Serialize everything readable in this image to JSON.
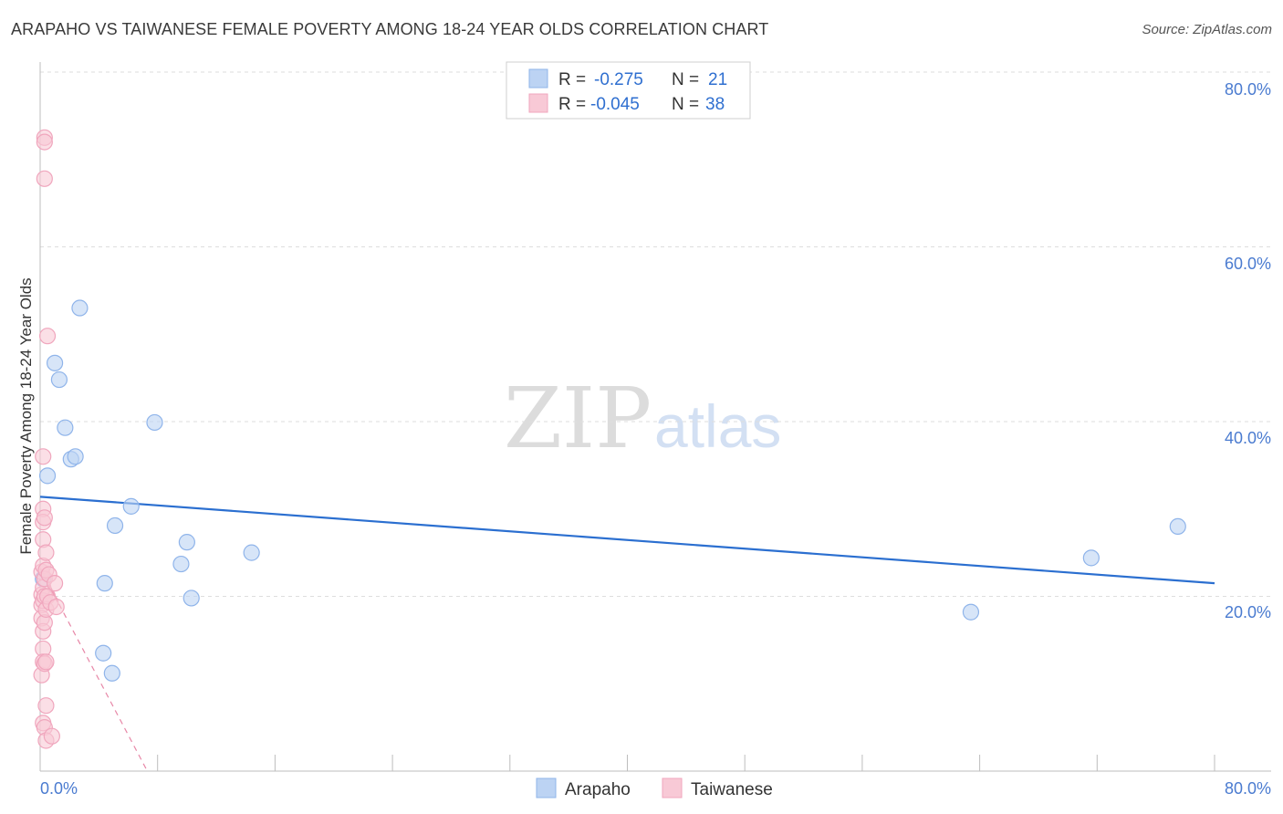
{
  "title": "ARAPAHO VS TAIWANESE FEMALE POVERTY AMONG 18-24 YEAR OLDS CORRELATION CHART",
  "source": "Source: ZipAtlas.com",
  "watermark": {
    "zip": "ZIP",
    "atlas": "atlas"
  },
  "legend_box": {
    "rows": [
      {
        "series": "Arapaho",
        "r_label": "R =",
        "r_value": "-0.275",
        "n_label": "N =",
        "n_value": "21"
      },
      {
        "series": "Taiwanese",
        "r_label": "R =",
        "r_value": "-0.045",
        "n_label": "N =",
        "n_value": "38"
      }
    ]
  },
  "chart_data": {
    "type": "scatter",
    "title": "ARAPAHO VS TAIWANESE FEMALE POVERTY AMONG 18-24 YEAR OLDS CORRELATION CHART",
    "xlabel": "",
    "ylabel": "Female Poverty Among 18-24 Year Olds",
    "xlim": [
      0,
      80
    ],
    "ylim": [
      0,
      80
    ],
    "x_tick_labels": [
      "0.0%",
      "80.0%"
    ],
    "y_ticks": [
      20,
      40,
      60,
      80
    ],
    "y_tick_labels": [
      "20.0%",
      "40.0%",
      "60.0%",
      "80.0%"
    ],
    "grid": true,
    "legend": "bottom-center",
    "series": [
      {
        "name": "Arapaho",
        "color": "#8fb4ea",
        "fill": "#bcd3f3",
        "line_color": "#2b6fd0",
        "points": [
          [
            0.2,
            22.0
          ],
          [
            0.5,
            33.8
          ],
          [
            1.0,
            46.7
          ],
          [
            1.3,
            44.8
          ],
          [
            1.7,
            39.3
          ],
          [
            2.1,
            35.7
          ],
          [
            2.4,
            36.0
          ],
          [
            2.7,
            53.0
          ],
          [
            4.3,
            13.5
          ],
          [
            4.4,
            21.5
          ],
          [
            4.9,
            11.2
          ],
          [
            5.1,
            28.1
          ],
          [
            6.2,
            30.3
          ],
          [
            7.8,
            39.9
          ],
          [
            9.6,
            23.7
          ],
          [
            10.0,
            26.2
          ],
          [
            10.3,
            19.8
          ],
          [
            14.4,
            25.0
          ],
          [
            63.4,
            18.2
          ],
          [
            71.6,
            24.4
          ],
          [
            77.5,
            28.0
          ]
        ],
        "trend": {
          "x": [
            0,
            80
          ],
          "y": [
            31.4,
            21.5
          ],
          "style": "solid"
        }
      },
      {
        "name": "Taiwanese",
        "color": "#f0a6bd",
        "fill": "#f8c9d6",
        "line_color": "#e0608a",
        "points": [
          [
            0.1,
            22.8
          ],
          [
            0.1,
            20.2
          ],
          [
            0.1,
            19.0
          ],
          [
            0.1,
            17.5
          ],
          [
            0.1,
            11.0
          ],
          [
            0.2,
            36.0
          ],
          [
            0.2,
            30.0
          ],
          [
            0.2,
            28.5
          ],
          [
            0.2,
            26.5
          ],
          [
            0.2,
            23.5
          ],
          [
            0.2,
            21.0
          ],
          [
            0.2,
            19.5
          ],
          [
            0.2,
            16.0
          ],
          [
            0.2,
            14.0
          ],
          [
            0.2,
            12.5
          ],
          [
            0.2,
            5.5
          ],
          [
            0.3,
            72.5
          ],
          [
            0.3,
            72.0
          ],
          [
            0.3,
            67.8
          ],
          [
            0.3,
            29.0
          ],
          [
            0.3,
            22.0
          ],
          [
            0.3,
            20.0
          ],
          [
            0.3,
            17.0
          ],
          [
            0.3,
            12.3
          ],
          [
            0.3,
            5.0
          ],
          [
            0.4,
            25.0
          ],
          [
            0.4,
            23.0
          ],
          [
            0.4,
            18.5
          ],
          [
            0.4,
            12.5
          ],
          [
            0.4,
            7.5
          ],
          [
            0.4,
            3.5
          ],
          [
            0.5,
            49.8
          ],
          [
            0.5,
            20.0
          ],
          [
            0.6,
            22.5
          ],
          [
            0.7,
            19.3
          ],
          [
            0.8,
            4.0
          ],
          [
            1.0,
            21.5
          ],
          [
            1.1,
            18.8
          ]
        ],
        "trend": {
          "x": [
            0,
            7.3
          ],
          "y": [
            23.2,
            0
          ],
          "style": "dashed",
          "solid_until_x": 1.2
        }
      }
    ]
  }
}
